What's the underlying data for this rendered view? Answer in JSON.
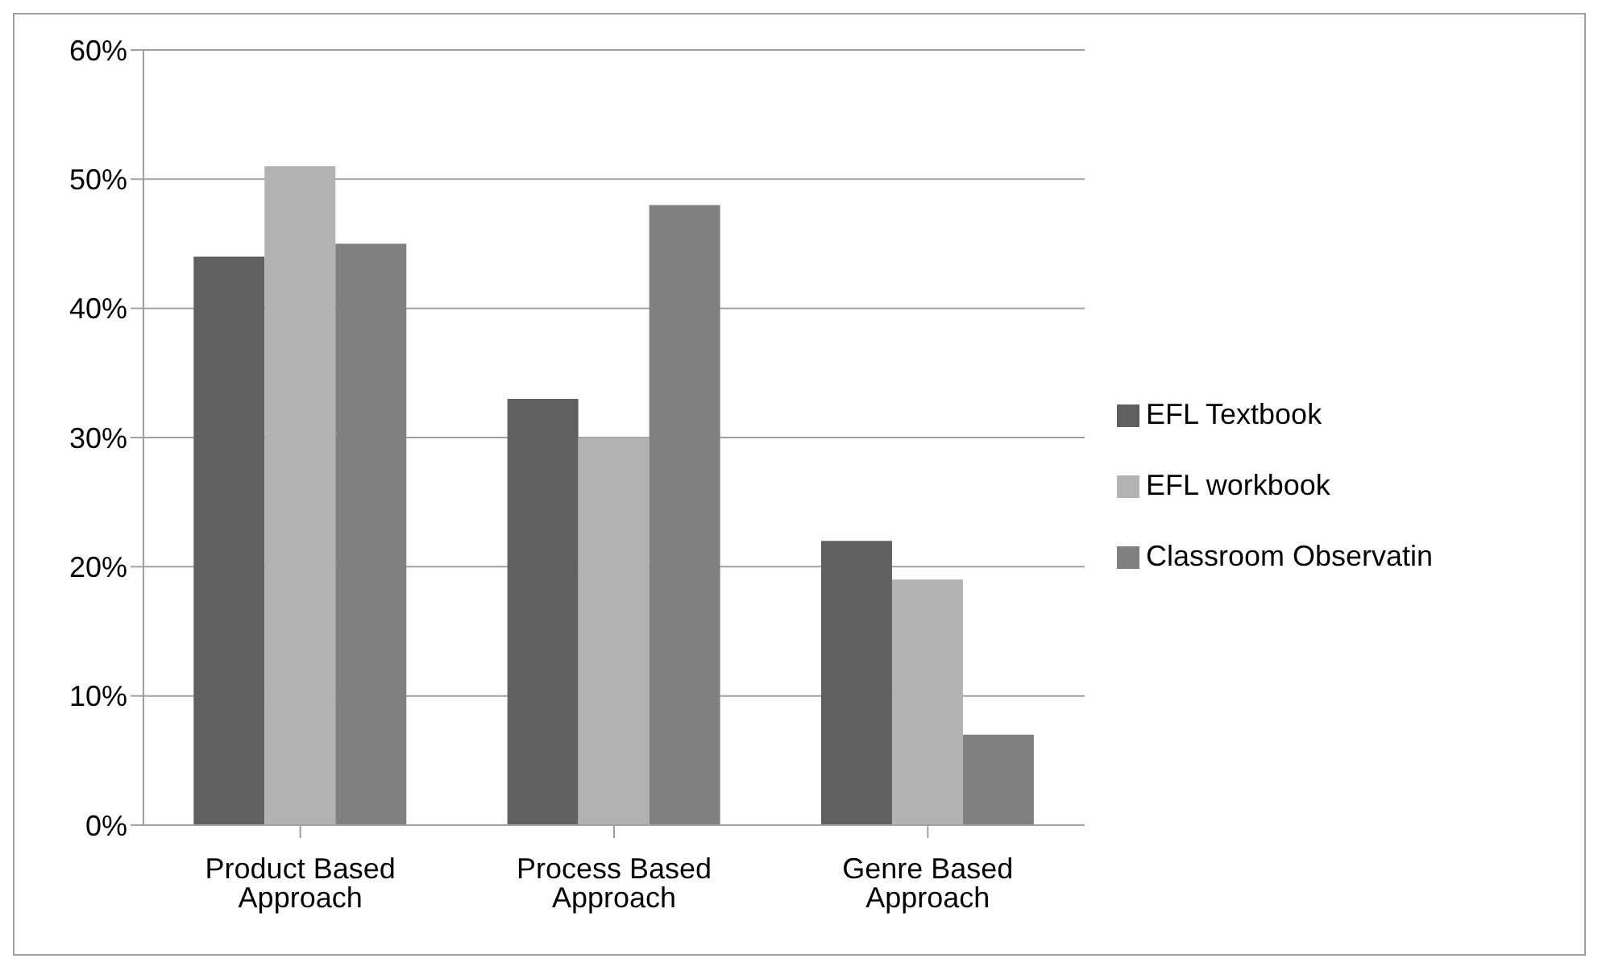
{
  "chart_data": {
    "type": "bar",
    "categories": [
      "Product Based Approach",
      "Process Based Approach",
      "Genre Based Approach"
    ],
    "series": [
      {
        "name": "EFL Textbook",
        "color": "#606060",
        "values": [
          44,
          33,
          22
        ]
      },
      {
        "name": "EFL workbook",
        "color": "#b2b2b2",
        "values": [
          51,
          30,
          19
        ]
      },
      {
        "name": "Classroom Observatin",
        "color": "#808080",
        "values": [
          45,
          48,
          7
        ]
      }
    ],
    "ylim": [
      0,
      60
    ],
    "yticks": [
      {
        "value": 0,
        "label": "0%"
      },
      {
        "value": 10,
        "label": "10%"
      },
      {
        "value": 20,
        "label": "20%"
      },
      {
        "value": 30,
        "label": "30%"
      },
      {
        "value": 40,
        "label": "40%"
      },
      {
        "value": 50,
        "label": "50%"
      },
      {
        "value": 60,
        "label": "60%"
      }
    ],
    "grid": "y",
    "legend": "right"
  }
}
